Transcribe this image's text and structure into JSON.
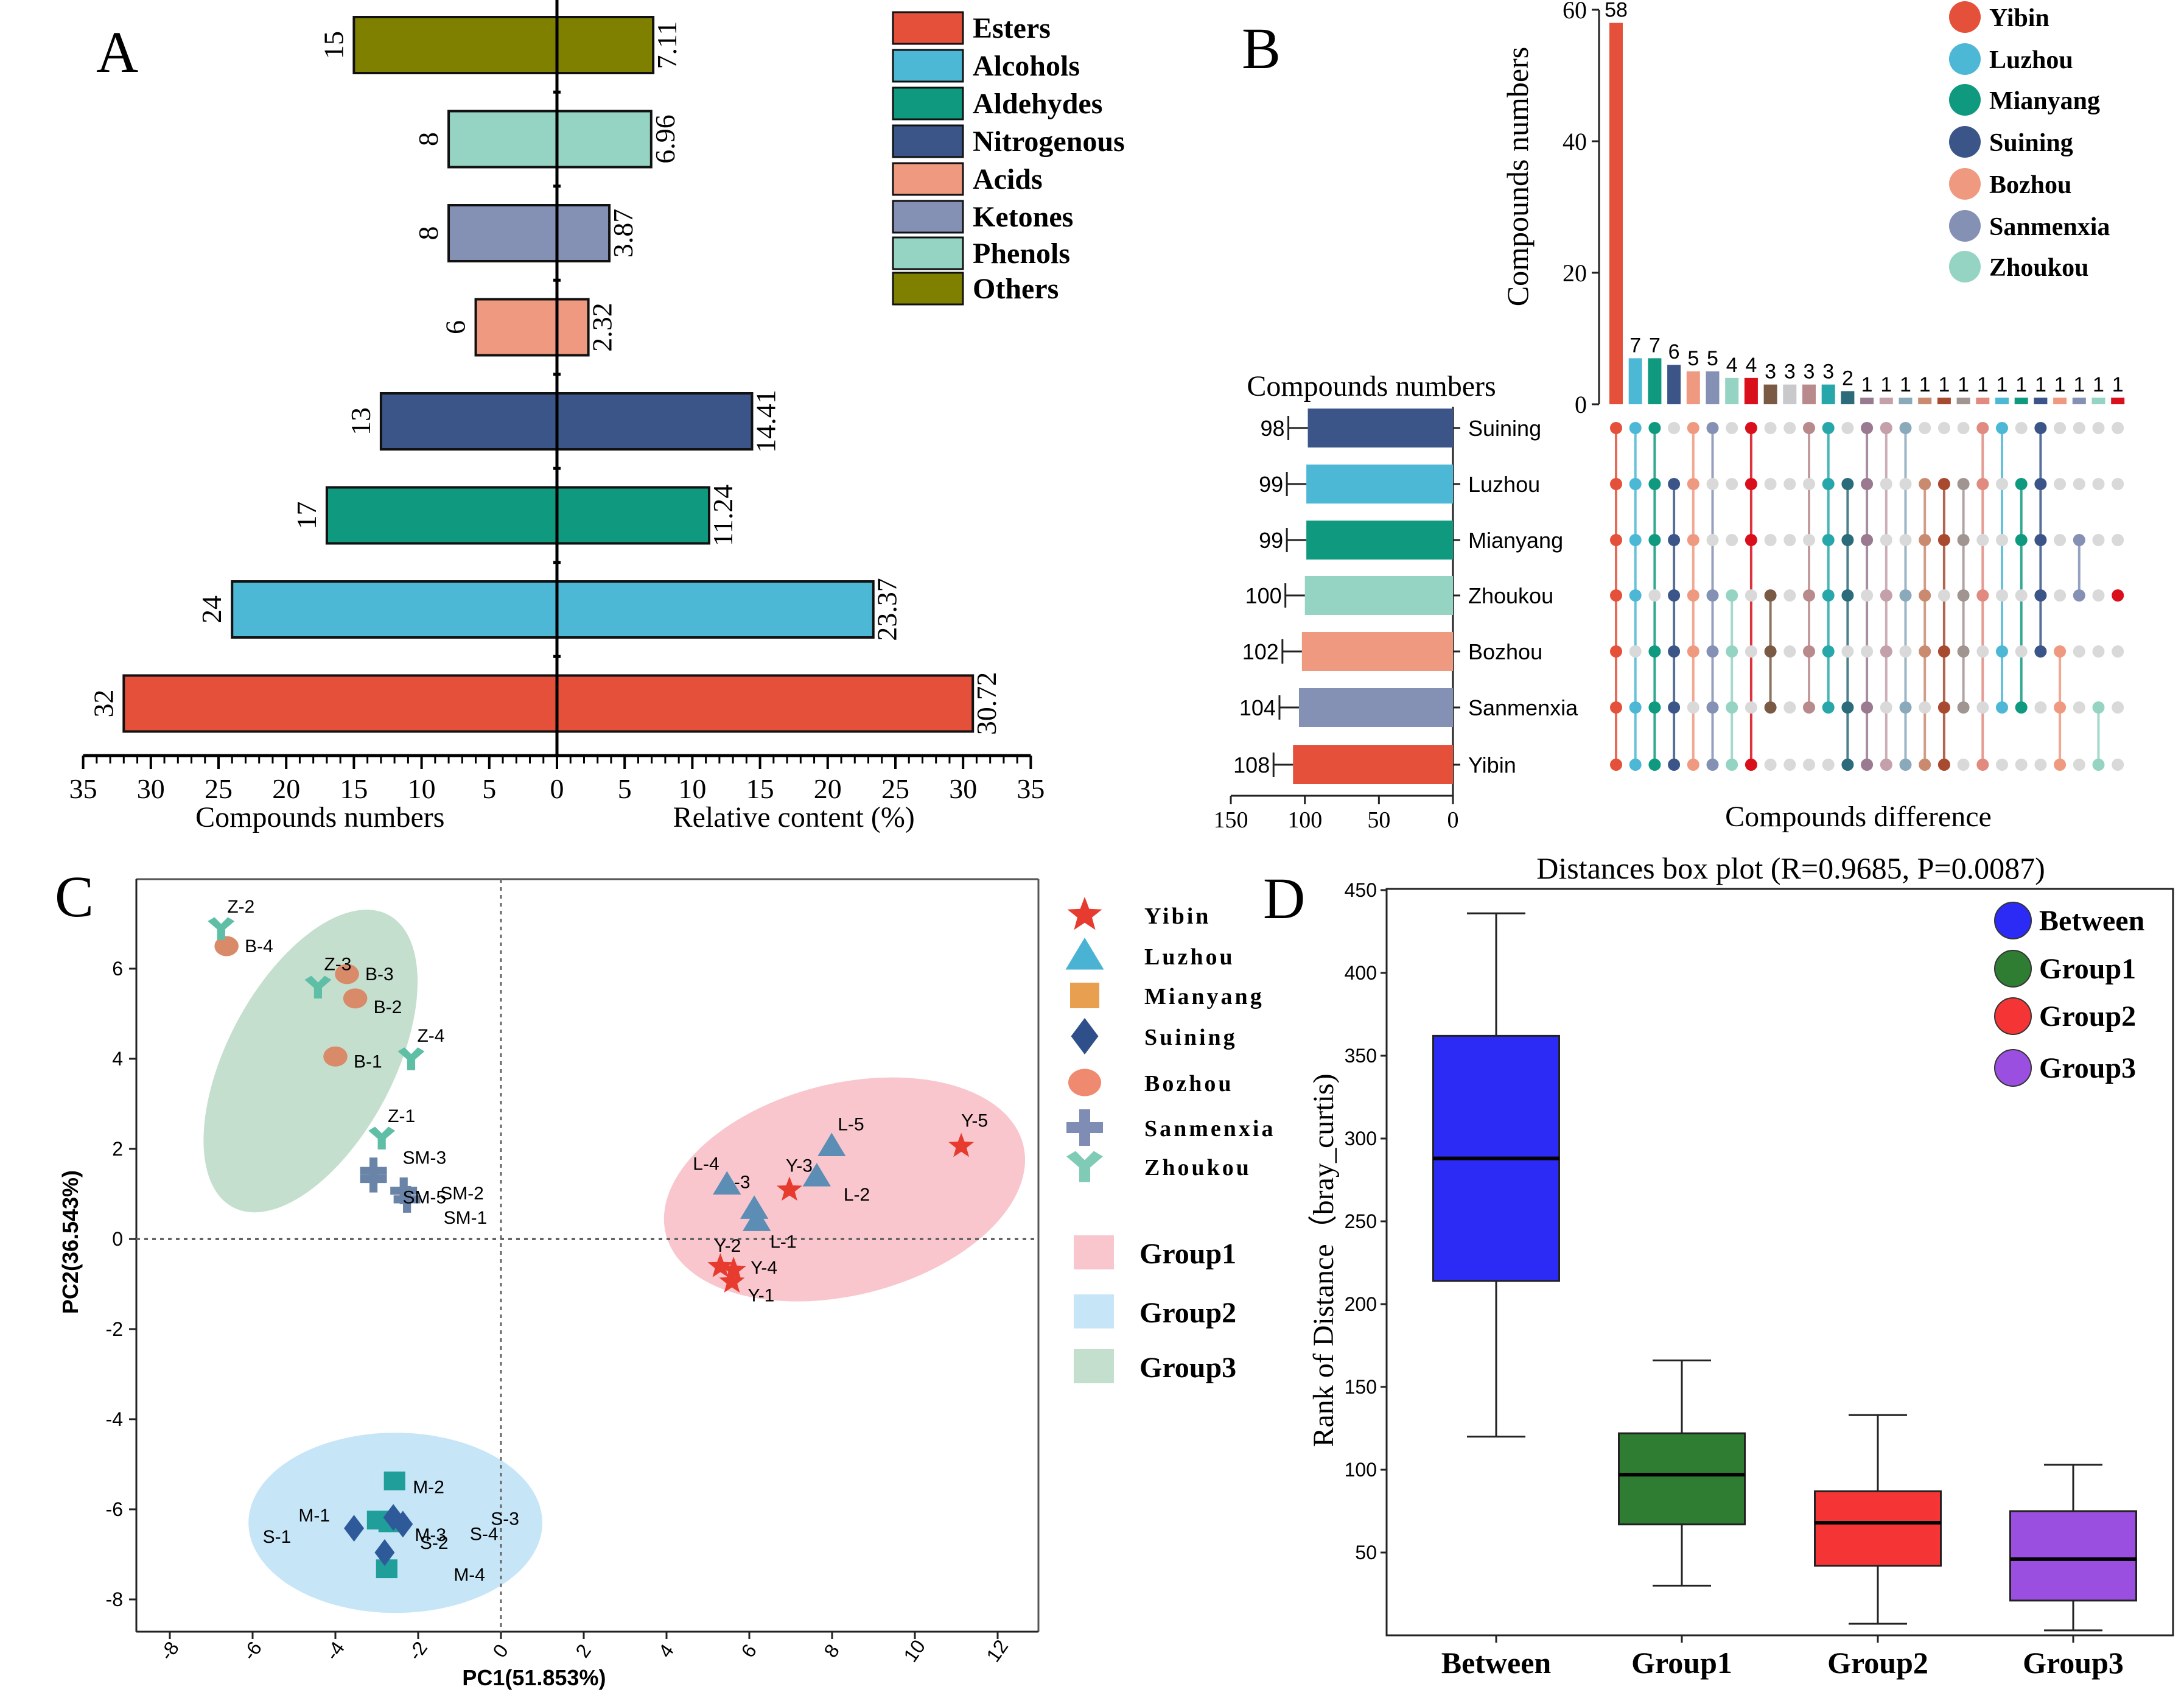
{
  "chart_data": [
    {
      "panel": "A",
      "type": "bar",
      "orientation": "horizontal-butterfly",
      "panel_label": "A",
      "categories": [
        "Others",
        "Phenols",
        "Ketones",
        "Acids",
        "Nitrogenous",
        "Aldehydes",
        "Alcohols",
        "Esters"
      ],
      "series": [
        {
          "name": "Compounds numbers",
          "side": "left",
          "values": [
            15,
            8,
            8,
            6,
            13,
            17,
            24,
            32
          ],
          "labels": [
            "15",
            "8",
            "8",
            "6",
            "13",
            "17",
            "24",
            "32"
          ]
        },
        {
          "name": "Relative content (%)",
          "side": "right",
          "values": [
            7.11,
            6.96,
            3.87,
            2.32,
            14.41,
            11.24,
            23.37,
            30.72
          ],
          "labels": [
            "7.11",
            "6.96",
            "3.87",
            "2.32",
            "14.41",
            "11.24",
            "23.37",
            "30.72"
          ]
        }
      ],
      "colors": [
        "#808000",
        "#95d3c3",
        "#8590b5",
        "#ef9a80",
        "#3b5588",
        "#0f9a80",
        "#4cb8d6",
        "#e5503a"
      ],
      "xlabel_left": "Compounds numbers",
      "xlabel_right": "Relative content (%)",
      "xlim": [
        -35,
        35
      ],
      "ticks": [
        35,
        30,
        25,
        20,
        15,
        10,
        5,
        0,
        5,
        10,
        15,
        20,
        25,
        30,
        35
      ],
      "tick_labels": [
        "35",
        "30",
        "25",
        "20",
        "15",
        "10",
        "5",
        "0",
        "5",
        "10",
        "15",
        "20",
        "25",
        "30",
        "35"
      ],
      "legend": {
        "position": "top-right",
        "entries": [
          {
            "label": "Esters",
            "color": "#e5503a"
          },
          {
            "label": "Alcohols",
            "color": "#4cb8d6"
          },
          {
            "label": "Aldehydes",
            "color": "#0f9a80"
          },
          {
            "label": "Nitrogenous",
            "color": "#3b5588"
          },
          {
            "label": "Acids",
            "color": "#ef9a80"
          },
          {
            "label": "Ketones",
            "color": "#8590b5"
          },
          {
            "label": "Phenols",
            "color": "#95d3c3"
          },
          {
            "label": "Others",
            "color": "#808000"
          }
        ]
      }
    },
    {
      "panel": "B",
      "type": "bar",
      "subtype": "upset",
      "panel_label": "B",
      "intersection_bars": {
        "ylabel": "Compounds numbers",
        "ylim": [
          0,
          60
        ],
        "ticks": [
          0,
          20,
          40,
          60
        ],
        "tick_labels": [
          "0",
          "20",
          "40",
          "60"
        ],
        "values": [
          58,
          7,
          7,
          6,
          5,
          5,
          4,
          4,
          3,
          3,
          3,
          3,
          2,
          1,
          1,
          1,
          1,
          1,
          1,
          1,
          1,
          1,
          1,
          1,
          1,
          1,
          1
        ],
        "labels": [
          "58",
          "7",
          "7",
          "6",
          "5",
          "5",
          "4",
          "4",
          "3",
          "3",
          "3",
          "3",
          "2",
          "1",
          "1",
          "1",
          "1",
          "1",
          "1",
          "1",
          "1",
          "1",
          "1",
          "1",
          "1",
          "1",
          "1"
        ],
        "colors": [
          "#e5503a",
          "#4cb8d6",
          "#0f9a80",
          "#3b5588",
          "#ef9a80",
          "#8590b5",
          "#95d3c3",
          "#d9101c",
          "#7a5a45",
          "#c9c9cc",
          "#b88a8c",
          "#27a7a9",
          "#2b6b7a",
          "#9a7a90",
          "#c3a0aa",
          "#8aaabb",
          "#c98a70",
          "#a84a30",
          "#a09590",
          "#e08a80",
          "#4cb8d6",
          "#0f9a80",
          "#3b5588",
          "#ef9a80",
          "#8590b5",
          "#95d3c3",
          "#d9101c"
        ]
      },
      "set_sizes": {
        "title": "Compounds numbers",
        "sets": [
          "Suining",
          "Luzhou",
          "Mianyang",
          "Zhoukou",
          "Bozhou",
          "Sanmenxia",
          "Yibin"
        ],
        "values": [
          98,
          99,
          99,
          100,
          102,
          104,
          108
        ],
        "labels": [
          "98",
          "99",
          "99",
          "100",
          "102",
          "104",
          "108"
        ],
        "colors": [
          "#3b5588",
          "#4cb8d6",
          "#0f9a80",
          "#95d3c3",
          "#ef9a80",
          "#8590b5",
          "#e5503a"
        ],
        "xlim": [
          150,
          0
        ],
        "ticks": [
          150,
          100,
          50,
          0
        ],
        "tick_labels": [
          "150",
          "100",
          "50",
          "0"
        ]
      },
      "matrix": {
        "xlabel": "Compounds difference",
        "row_order": [
          "Suining",
          "Luzhou",
          "Mianyang",
          "Zhoukou",
          "Bozhou",
          "Sanmenxia",
          "Yibin"
        ],
        "membership": [
          [
            1,
            1,
            1,
            1,
            1,
            1,
            1
          ],
          [
            1,
            1,
            1,
            1,
            0,
            1,
            1
          ],
          [
            1,
            1,
            1,
            0,
            1,
            1,
            1
          ],
          [
            0,
            1,
            1,
            1,
            1,
            1,
            1
          ],
          [
            1,
            1,
            1,
            1,
            1,
            0,
            1
          ],
          [
            1,
            0,
            0,
            1,
            1,
            1,
            1
          ],
          [
            0,
            0,
            0,
            1,
            1,
            1,
            1
          ],
          [
            1,
            1,
            1,
            0,
            0,
            0,
            1
          ],
          [
            0,
            0,
            0,
            1,
            1,
            1,
            0
          ],
          [
            0,
            0,
            0,
            0,
            0,
            0,
            0
          ],
          [
            1,
            0,
            0,
            1,
            1,
            1,
            0
          ],
          [
            1,
            1,
            1,
            1,
            1,
            1,
            0
          ],
          [
            0,
            1,
            1,
            1,
            0,
            1,
            1
          ],
          [
            1,
            1,
            1,
            0,
            0,
            1,
            1
          ],
          [
            1,
            0,
            0,
            1,
            1,
            0,
            1
          ],
          [
            1,
            0,
            0,
            1,
            0,
            1,
            1
          ],
          [
            0,
            1,
            1,
            1,
            1,
            0,
            1
          ],
          [
            0,
            1,
            1,
            0,
            1,
            1,
            1
          ],
          [
            0,
            1,
            1,
            1,
            1,
            1,
            0
          ],
          [
            1,
            1,
            0,
            1,
            0,
            0,
            1
          ],
          [
            1,
            0,
            0,
            0,
            1,
            1,
            0
          ],
          [
            0,
            1,
            1,
            0,
            0,
            1,
            0
          ],
          [
            1,
            1,
            1,
            1,
            1,
            0,
            0
          ],
          [
            0,
            0,
            0,
            0,
            1,
            1,
            1
          ],
          [
            0,
            0,
            1,
            1,
            0,
            0,
            0
          ],
          [
            0,
            0,
            0,
            0,
            0,
            1,
            1
          ],
          [
            0,
            0,
            0,
            1,
            0,
            0,
            0
          ]
        ],
        "empty_color": "#d9d9d9"
      },
      "legend": {
        "position": "top-right",
        "entries": [
          {
            "label": "Yibin",
            "color": "#e5503a"
          },
          {
            "label": "Luzhou",
            "color": "#4cb8d6"
          },
          {
            "label": "Mianyang",
            "color": "#0f9a80"
          },
          {
            "label": "Suining",
            "color": "#3b5588"
          },
          {
            "label": "Bozhou",
            "color": "#ef9a80"
          },
          {
            "label": "Sanmenxia",
            "color": "#8590b5"
          },
          {
            "label": "Zhoukou",
            "color": "#95d3c3"
          }
        ]
      }
    },
    {
      "panel": "C",
      "type": "scatter",
      "panel_label": "C",
      "xlabel": "PC1(51.853%)",
      "ylabel": "PC2(36.543%)",
      "xlim": [
        -9,
        13
      ],
      "ylim": [
        -9.2,
        7.7
      ],
      "xticks": [
        -8,
        -6,
        -4,
        -2,
        0,
        2,
        4,
        6,
        8,
        10,
        12
      ],
      "xtick_labels": [
        "-8",
        "-6",
        "-4",
        "-2",
        "0",
        "2",
        "4",
        "6",
        "8",
        "10",
        "12"
      ],
      "yticks": [
        -8,
        -6,
        -4,
        -2,
        0,
        2,
        4,
        6
      ],
      "ytick_labels": [
        "-8",
        "-6",
        "-4",
        "-2",
        "0",
        "2",
        "4",
        "6"
      ],
      "reference_lines": {
        "x": 0,
        "y": 0,
        "style": "dotted"
      },
      "groups": [
        {
          "name": "Group1",
          "color": "#f8c6cc",
          "ellipse": {
            "cx": 8.3,
            "cy": 1.1,
            "rx": 4.45,
            "ry": 2.35,
            "angle_deg": -14
          }
        },
        {
          "name": "Group2",
          "color": "#c6e6f8",
          "ellipse": {
            "cx": -2.55,
            "cy": -6.3,
            "rx": 3.55,
            "ry": 2.0,
            "angle_deg": 0
          }
        },
        {
          "name": "Group3",
          "color": "#c5dfcf",
          "ellipse": {
            "cx": -4.6,
            "cy": 3.95,
            "rx": 4.0,
            "ry": 1.85,
            "angle_deg": -62
          }
        }
      ],
      "series": [
        {
          "name": "Yibin",
          "marker": "star",
          "color": "#e63b2e",
          "points": [
            {
              "label": "Y-1",
              "x": 5.58,
              "y": -0.95
            },
            {
              "label": "Y-2",
              "x": 5.3,
              "y": -0.61
            },
            {
              "label": "Y-3",
              "x": 6.97,
              "y": 1.09
            },
            {
              "label": "Y-4",
              "x": 5.62,
              "y": -0.69
            },
            {
              "label": "Y-5",
              "x": 11.12,
              "y": 2.06
            }
          ]
        },
        {
          "name": "Luzhou",
          "marker": "triangle",
          "color": "#5b8db5",
          "points": [
            {
              "label": "L-1",
              "x": 6.18,
              "y": 0.4
            },
            {
              "label": "L-2",
              "x": 7.63,
              "y": 1.39
            },
            {
              "label": "L-3",
              "x": 6.12,
              "y": 0.67
            },
            {
              "label": "L-4",
              "x": 5.46,
              "y": 1.21
            },
            {
              "label": "L-5",
              "x": 7.99,
              "y": 2.06
            }
          ]
        },
        {
          "name": "Mianyang",
          "marker": "square",
          "color": "#1f9e9a",
          "points": [
            {
              "label": "M-1",
              "x": -2.98,
              "y": -6.24
            },
            {
              "label": "M-2",
              "x": -2.57,
              "y": -5.37
            },
            {
              "label": "M-3",
              "x": -2.7,
              "y": -6.3
            },
            {
              "label": "M-4",
              "x": -2.76,
              "y": -7.32
            }
          ]
        },
        {
          "name": "Suining",
          "marker": "diamond",
          "color": "#2e5a9a",
          "points": [
            {
              "label": "S-1",
              "x": -3.55,
              "y": -6.42
            },
            {
              "label": "S-2",
              "x": -2.81,
              "y": -6.96
            },
            {
              "label": "S-3",
              "x": -2.6,
              "y": -6.18
            },
            {
              "label": "S-4",
              "x": -2.37,
              "y": -6.33
            }
          ]
        },
        {
          "name": "Bozhou",
          "marker": "circle",
          "color": "#d98a68",
          "points": [
            {
              "label": "B-1",
              "x": -4.0,
              "y": 4.05
            },
            {
              "label": "B-2",
              "x": -3.52,
              "y": 5.34
            },
            {
              "label": "B-3",
              "x": -3.72,
              "y": 5.88
            },
            {
              "label": "B-4",
              "x": -6.63,
              "y": 6.5
            }
          ]
        },
        {
          "name": "Sanmenxia",
          "marker": "cross",
          "color": "#6a84a8",
          "points": [
            {
              "label": "SM-1",
              "x": -2.27,
              "y": 0.88
            },
            {
              "label": "SM-2",
              "x": -2.35,
              "y": 1.07
            },
            {
              "label": "SM-3",
              "x": -3.08,
              "y": 1.51
            },
            {
              "label": "SM-5",
              "x": -3.08,
              "y": 1.33
            }
          ]
        },
        {
          "name": "Zhoukou",
          "marker": "tri-y",
          "color": "#5fbfa6",
          "points": [
            {
              "label": "Z-1",
              "x": -2.88,
              "y": 2.24
            },
            {
              "label": "Z-2",
              "x": -6.76,
              "y": 6.89
            },
            {
              "label": "Z-3",
              "x": -4.42,
              "y": 5.59
            },
            {
              "label": "Z-4",
              "x": -2.17,
              "y": 4.0
            }
          ]
        }
      ],
      "legend": {
        "position": "right",
        "entries": [
          {
            "label": "Yibin",
            "marker": "star",
            "color": "#e63b2e"
          },
          {
            "label": "Luzhou",
            "marker": "triangle",
            "color": "#4ab3d4"
          },
          {
            "label": "Mianyang",
            "marker": "square",
            "color": "#e8a050"
          },
          {
            "label": "Suining",
            "marker": "diamond",
            "color": "#2e4f8a"
          },
          {
            "label": "Bozhou",
            "marker": "circle",
            "color": "#ef8a70"
          },
          {
            "label": "Sanmenxia",
            "marker": "cross",
            "color": "#7f8db5"
          },
          {
            "label": "Zhoukou",
            "marker": "tri-y",
            "color": "#7fcbb5"
          }
        ],
        "group_entries": [
          {
            "label": "Group1",
            "color": "#f8c6cc"
          },
          {
            "label": "Group2",
            "color": "#c6e6f8"
          },
          {
            "label": "Group3",
            "color": "#c5dfcf"
          }
        ]
      }
    },
    {
      "panel": "D",
      "type": "box",
      "panel_label": "D",
      "title": "Distances box plot (R=0.9685, P=0.0087)",
      "ylabel": "Rank of Distance（bray_curtis)",
      "ylim": [
        0,
        450
      ],
      "yticks": [
        50,
        100,
        150,
        200,
        250,
        300,
        350,
        400,
        450
      ],
      "ytick_labels": [
        "50",
        "100",
        "150",
        "200",
        "250",
        "300",
        "350",
        "400",
        "450"
      ],
      "categories": [
        "Between",
        "Group1",
        "Group2",
        "Group3"
      ],
      "boxes": [
        {
          "name": "Between",
          "min": 120,
          "q1": 214,
          "median": 288,
          "q3": 362,
          "max": 436,
          "color": "#2b2bf5"
        },
        {
          "name": "Group1",
          "min": 30,
          "q1": 67,
          "median": 97,
          "q3": 122,
          "max": 166,
          "color": "#2e7d32"
        },
        {
          "name": "Group2",
          "min": 7,
          "q1": 42,
          "median": 68,
          "q3": 87,
          "max": 133,
          "color": "#f53535"
        },
        {
          "name": "Group3",
          "min": 3,
          "q1": 21,
          "median": 46,
          "q3": 75,
          "max": 103,
          "color": "#9b4fe0"
        }
      ],
      "legend": {
        "position": "top-right",
        "entries": [
          {
            "label": "Between",
            "color": "#2b2bf5"
          },
          {
            "label": "Group1",
            "color": "#2e7d32"
          },
          {
            "label": "Group2",
            "color": "#f53535"
          },
          {
            "label": "Group3",
            "color": "#9b4fe0"
          }
        ]
      }
    }
  ]
}
